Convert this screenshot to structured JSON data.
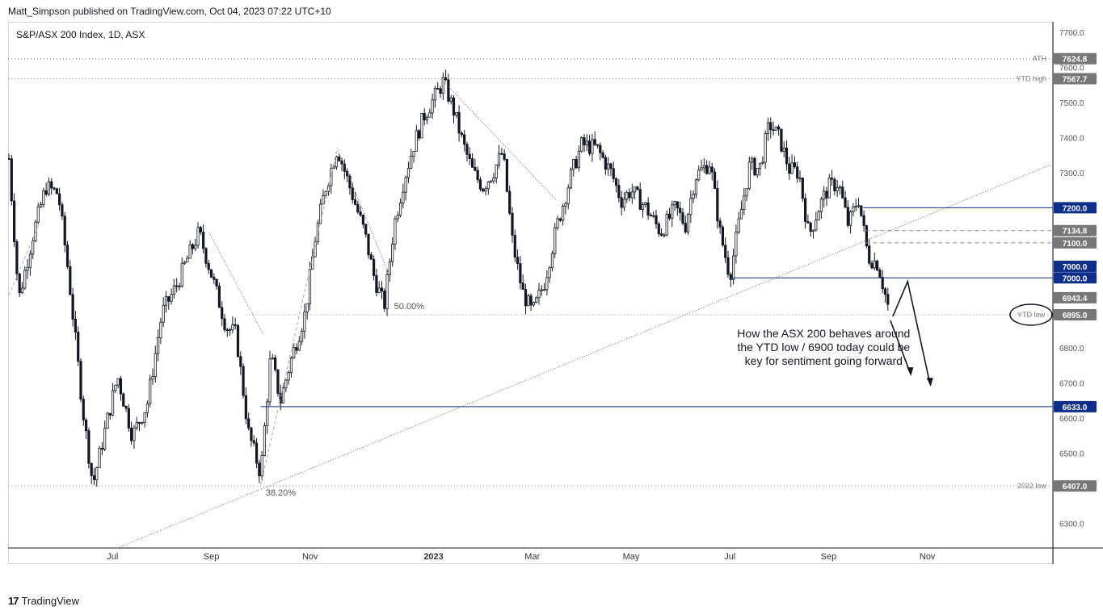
{
  "header": {
    "publisher": "Matt_Simpson published on TradingView.com, Oct 04, 2023 07:22 UTC+10"
  },
  "footer": {
    "brand": "TradingView",
    "logo": "17"
  },
  "chart_data": {
    "type": "candlestick",
    "title": "S&P/ASX 200 Index, 1D, ASX",
    "ylim": [
      6230,
      7730
    ],
    "y_ticks": [
      6300.0,
      6400.0,
      6500.0,
      6600.0,
      6700.0,
      6800.0,
      6900.0,
      7000.0,
      7100.0,
      7200.0,
      7300.0,
      7400.0,
      7500.0,
      7600.0,
      7700.0
    ],
    "x_ticks": [
      {
        "label": "Jul",
        "t": 5.5
      },
      {
        "label": "Sep",
        "t": 7.5
      },
      {
        "label": "Nov",
        "t": 9.5
      },
      {
        "label": "2023",
        "t": 12.0
      },
      {
        "label": "Mar",
        "t": 14.0
      },
      {
        "label": "May",
        "t": 16.0
      },
      {
        "label": "Jul",
        "t": 18.0
      },
      {
        "label": "Sep",
        "t": 20.0
      },
      {
        "label": "Nov",
        "t": 22.0
      }
    ],
    "x_range": [
      3.4,
      23.2
    ],
    "path": [
      [
        3.4,
        7340
      ],
      [
        3.6,
        6940
      ],
      [
        3.9,
        7130
      ],
      [
        4.15,
        7260
      ],
      [
        4.4,
        7240
      ],
      [
        4.6,
        7020
      ],
      [
        4.9,
        6620
      ],
      [
        5.1,
        6410
      ],
      [
        5.4,
        6600
      ],
      [
        5.6,
        6720
      ],
      [
        5.9,
        6550
      ],
      [
        6.2,
        6640
      ],
      [
        6.5,
        6900
      ],
      [
        6.8,
        6980
      ],
      [
        7.0,
        7050
      ],
      [
        7.25,
        7130
      ],
      [
        7.5,
        7010
      ],
      [
        7.8,
        6860
      ],
      [
        8.0,
        6840
      ],
      [
        8.25,
        6560
      ],
      [
        8.5,
        6440
      ],
      [
        8.7,
        6780
      ],
      [
        8.9,
        6650
      ],
      [
        9.1,
        6760
      ],
      [
        9.4,
        6900
      ],
      [
        9.6,
        7110
      ],
      [
        9.8,
        7250
      ],
      [
        10.05,
        7370
      ],
      [
        10.3,
        7260
      ],
      [
        10.6,
        7130
      ],
      [
        10.8,
        7000
      ],
      [
        11.0,
        6920
      ],
      [
        11.2,
        7150
      ],
      [
        11.4,
        7280
      ],
      [
        11.6,
        7380
      ],
      [
        11.8,
        7460
      ],
      [
        12.0,
        7510
      ],
      [
        12.2,
        7560
      ],
      [
        12.4,
        7480
      ],
      [
        12.6,
        7380
      ],
      [
        12.8,
        7300
      ],
      [
        13.0,
        7260
      ],
      [
        13.2,
        7300
      ],
      [
        13.4,
        7360
      ],
      [
        13.6,
        7100
      ],
      [
        13.8,
        6960
      ],
      [
        14.0,
        6900
      ],
      [
        14.25,
        6990
      ],
      [
        14.5,
        7150
      ],
      [
        14.8,
        7300
      ],
      [
        15.0,
        7380
      ],
      [
        15.3,
        7370
      ],
      [
        15.6,
        7300
      ],
      [
        15.8,
        7220
      ],
      [
        16.0,
        7250
      ],
      [
        16.3,
        7200
      ],
      [
        16.6,
        7130
      ],
      [
        16.9,
        7200
      ],
      [
        17.1,
        7150
      ],
      [
        17.3,
        7290
      ],
      [
        17.6,
        7330
      ],
      [
        17.8,
        7130
      ],
      [
        18.0,
        7005
      ],
      [
        18.2,
        7170
      ],
      [
        18.4,
        7320
      ],
      [
        18.6,
        7310
      ],
      [
        18.8,
        7440
      ],
      [
        19.0,
        7400
      ],
      [
        19.2,
        7310
      ],
      [
        19.4,
        7300
      ],
      [
        19.6,
        7120
      ],
      [
        19.8,
        7200
      ],
      [
        20.0,
        7260
      ],
      [
        20.2,
        7270
      ],
      [
        20.4,
        7150
      ],
      [
        20.6,
        7230
      ],
      [
        20.8,
        7060
      ],
      [
        21.0,
        7040
      ],
      [
        21.2,
        6920
      ]
    ],
    "horizontal_levels": [
      {
        "value": 7624.8,
        "label": "ATH",
        "tag": "7624.8",
        "style": "dotted"
      },
      {
        "value": 7567.7,
        "label": "YTD high",
        "tag": "7567.7",
        "style": "dotted"
      },
      {
        "value": 7200.0,
        "label": "",
        "tag": "7200.0",
        "style": "solid"
      },
      {
        "value": 7134.8,
        "label": "",
        "tag": "7134.8",
        "style": "dashed"
      },
      {
        "value": 7100.0,
        "label": "",
        "tag": "7100.0",
        "style": "dashed"
      },
      {
        "value": 7000.0,
        "label": "",
        "tag": "7000.0",
        "style": "solid"
      },
      {
        "value": 6895.0,
        "label": "YTD low",
        "tag": "6895.0",
        "style": "dotted"
      },
      {
        "value": 6633.0,
        "label": "",
        "tag": "6633.0",
        "style": "solid"
      },
      {
        "value": 6407.0,
        "label": "2022 low",
        "tag": "6407.0",
        "style": "dotted"
      }
    ],
    "price_tags": [
      "7000.0",
      "6943.4"
    ],
    "fib_labels": [
      "50.00%",
      "38.20%"
    ],
    "annotation": "How the ASX 200 behaves around\nthe YTD low / 6900 today could be\nkey for sentiment going forward",
    "colors": {
      "candle": "#131722",
      "level": "#0d2f8a",
      "grid_tag": "#666666",
      "line": "#555555"
    }
  }
}
